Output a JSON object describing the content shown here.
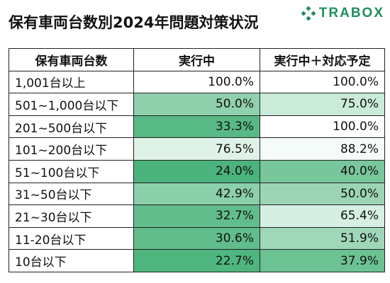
{
  "title": "保有車両台数別2024年問題対策状況",
  "brand": {
    "name": "TRABOX",
    "logo_icon": "trabox-diamond-dots-icon",
    "color": "#1f8f5f"
  },
  "chart_data": {
    "type": "table",
    "title": "保有車両台数別2024年問題対策状況",
    "columns": [
      "保有車両台数",
      "実行中",
      "実行中＋対応予定"
    ],
    "rows": [
      {
        "category": "1,001台以上",
        "in_progress": "100.0%",
        "in_progress_plus_planned": "100.0%"
      },
      {
        "category": "501~1,000台以下",
        "in_progress": "50.0%",
        "in_progress_plus_planned": "75.0%"
      },
      {
        "category": "201~500台以下",
        "in_progress": "33.3%",
        "in_progress_plus_planned": "100.0%"
      },
      {
        "category": "101~200台以下",
        "in_progress": "76.5%",
        "in_progress_plus_planned": "88.2%"
      },
      {
        "category": "51~100台以下",
        "in_progress": "24.0%",
        "in_progress_plus_planned": "40.0%"
      },
      {
        "category": "31~50台以下",
        "in_progress": "42.9%",
        "in_progress_plus_planned": "50.0%"
      },
      {
        "category": "21~30台以下",
        "in_progress": "32.7%",
        "in_progress_plus_planned": "65.4%"
      },
      {
        "category": "11-20台以下",
        "in_progress": "30.6%",
        "in_progress_plus_planned": "51.9%"
      },
      {
        "category": "10台以下",
        "in_progress": "22.7%",
        "in_progress_plus_planned": "37.9%"
      }
    ],
    "cell_shading": {
      "in_progress": [
        "#ffffff",
        "#8fd0ad",
        "#57b985",
        "#dff2e8",
        "#4cb37d",
        "#8ccfab",
        "#62bd8c",
        "#61bd8b",
        "#4fb57f"
      ],
      "in_progress_plus_planned": [
        "#ffffff",
        "#c9ebd8",
        "#ffffff",
        "#f5fbf8",
        "#78c79c",
        "#9bd5b5",
        "#d6efe2",
        "#a0d7b9",
        "#6dc294"
      ]
    }
  }
}
